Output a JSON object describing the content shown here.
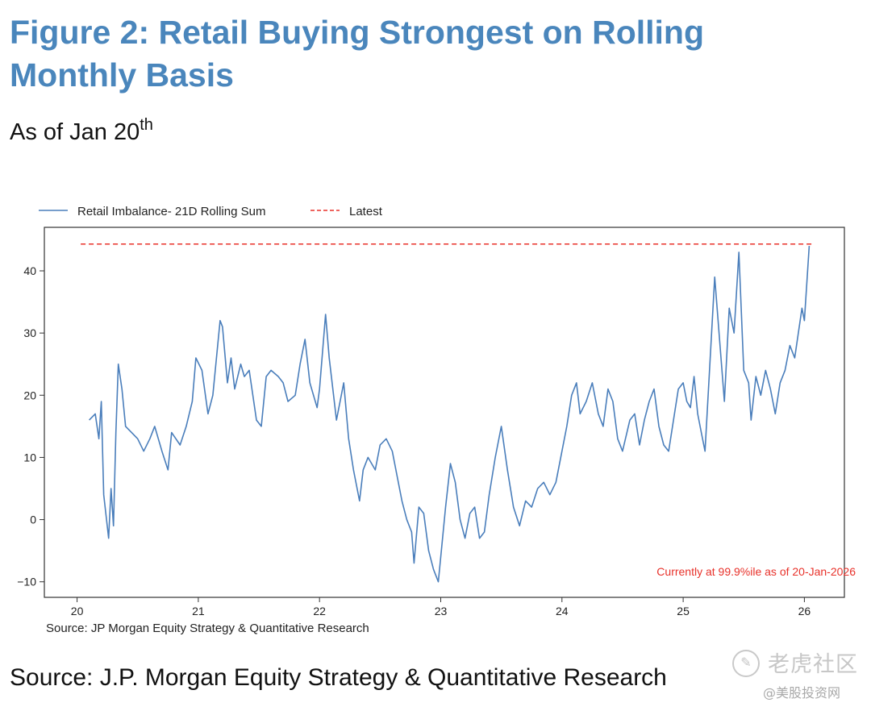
{
  "page": {
    "title": "Figure 2: Retail Buying Strongest on Rolling Monthly Basis",
    "subtitle_main": "As of Jan 20",
    "subtitle_sup": "th",
    "bottom_source": "Source: J.P. Morgan Equity Strategy & Quantitative Research"
  },
  "watermark": {
    "logo": "✎",
    "main": "老虎社区",
    "sub": "@美股投资网"
  },
  "chart_data": {
    "type": "line",
    "x_unit": "year (20 = 2020)",
    "xlim": [
      19.73,
      26.33
    ],
    "ylim": [
      -12.5,
      47
    ],
    "xticks": [
      20,
      21,
      22,
      23,
      24,
      25,
      26
    ],
    "xtick_labels": [
      "20",
      "21",
      "22",
      "23",
      "24",
      "25",
      "26"
    ],
    "yticks": [
      -10,
      0,
      10,
      20,
      30,
      40
    ],
    "ytick_labels": [
      "−10",
      "0",
      "10",
      "20",
      "30",
      "40"
    ],
    "grid": false,
    "legend_position": "top-left, outside plot",
    "annotation": "Currently at 99.9%ile as of 20-Jan-2026",
    "source_note": "Source: JP Morgan Equity Strategy & Quantitative Research",
    "colors": {
      "series": "#4a7ebb",
      "latest": "#e8312a",
      "annotation": "#e8312a"
    },
    "series": [
      {
        "name": "Retail Imbalance- 21D Rolling Sum",
        "style": "solid",
        "x": [
          20.1,
          20.15,
          20.18,
          20.2,
          20.22,
          20.26,
          20.28,
          20.3,
          20.32,
          20.34,
          20.37,
          20.4,
          20.45,
          20.5,
          20.55,
          20.6,
          20.64,
          20.7,
          20.75,
          20.78,
          20.85,
          20.9,
          20.95,
          20.98,
          21.03,
          21.08,
          21.12,
          21.18,
          21.2,
          21.24,
          21.27,
          21.3,
          21.35,
          21.38,
          21.42,
          21.48,
          21.52,
          21.56,
          21.6,
          21.66,
          21.7,
          21.74,
          21.8,
          21.84,
          21.88,
          21.92,
          21.98,
          22.0,
          22.05,
          22.08,
          22.14,
          22.2,
          22.24,
          22.28,
          22.33,
          22.36,
          22.4,
          22.46,
          22.5,
          22.55,
          22.6,
          22.64,
          22.68,
          22.72,
          22.76,
          22.78,
          22.82,
          22.86,
          22.9,
          22.94,
          22.98,
          23.0,
          23.04,
          23.08,
          23.12,
          23.16,
          23.2,
          23.24,
          23.28,
          23.32,
          23.36,
          23.4,
          23.45,
          23.5,
          23.55,
          23.6,
          23.65,
          23.7,
          23.75,
          23.8,
          23.85,
          23.9,
          23.95,
          24.0,
          24.04,
          24.08,
          24.12,
          24.15,
          24.2,
          24.25,
          24.3,
          24.34,
          24.38,
          24.42,
          24.46,
          24.5,
          24.56,
          24.6,
          24.64,
          24.68,
          24.72,
          24.76,
          24.8,
          24.84,
          24.88,
          24.92,
          24.96,
          25.0,
          25.03,
          25.06,
          25.09,
          25.12,
          25.15,
          25.18,
          25.22,
          25.26,
          25.3,
          25.34,
          25.38,
          25.42,
          25.46,
          25.5,
          25.54,
          25.56,
          25.6,
          25.64,
          25.68,
          25.72,
          25.76,
          25.8,
          25.84,
          25.88,
          25.92,
          25.95,
          25.98,
          26.0,
          26.02,
          26.04
        ],
        "y": [
          16,
          17,
          13,
          19,
          4,
          -3,
          5,
          -1,
          14,
          25,
          21,
          15,
          14,
          13,
          11,
          13,
          15,
          11,
          8,
          14,
          12,
          15,
          19,
          26,
          24,
          17,
          20,
          32,
          31,
          22,
          26,
          21,
          25,
          23,
          24,
          16,
          15,
          23,
          24,
          23,
          22,
          19,
          20,
          25,
          29,
          22,
          18,
          21,
          33,
          26,
          16,
          22,
          13,
          8,
          3,
          8,
          10,
          8,
          12,
          13,
          11,
          7,
          3,
          0,
          -2,
          -7,
          2,
          1,
          -5,
          -8,
          -10,
          -6,
          2,
          9,
          6,
          0,
          -3,
          1,
          2,
          -3,
          -2,
          4,
          10,
          15,
          8,
          2,
          -1,
          3,
          2,
          5,
          6,
          4,
          6,
          11,
          15,
          20,
          22,
          17,
          19,
          22,
          17,
          15,
          21,
          19,
          13,
          11,
          16,
          17,
          12,
          16,
          19,
          21,
          15,
          12,
          11,
          16,
          21,
          22,
          19,
          18,
          23,
          17,
          14,
          11,
          25,
          39,
          29,
          19,
          34,
          30,
          43,
          24,
          22,
          16,
          23,
          20,
          24,
          21,
          17,
          22,
          24,
          28,
          26,
          30,
          34,
          32,
          38,
          44
        ]
      },
      {
        "name": "Latest",
        "style": "dashed",
        "x": [
          20.03,
          26.06
        ],
        "y": [
          44.3,
          44.3
        ]
      }
    ]
  }
}
